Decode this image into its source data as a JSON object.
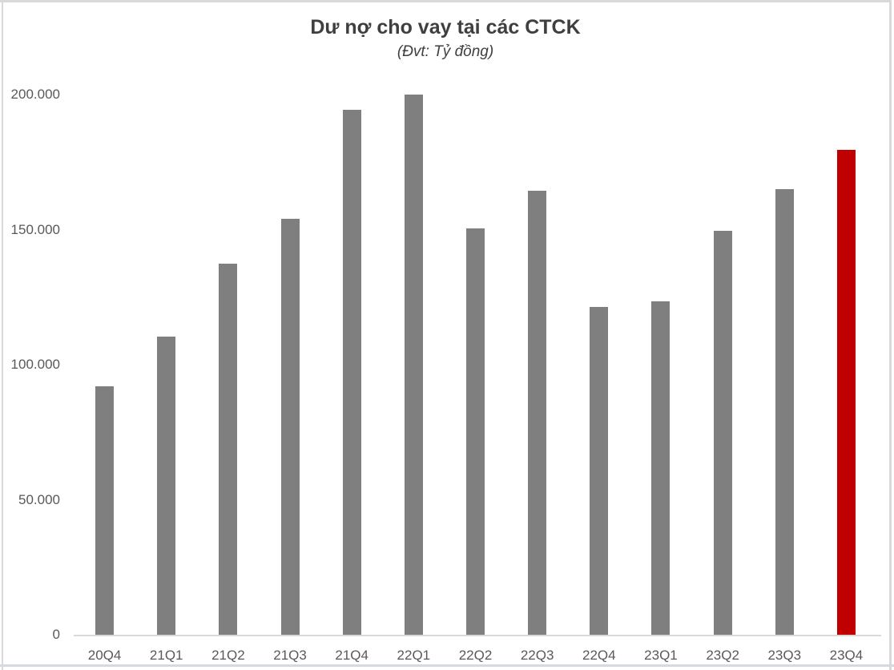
{
  "chart_data": {
    "type": "bar",
    "title": "Dư nợ cho vay tại các CTCK",
    "subtitle": "(Đvt: Tỷ đồng)",
    "unit_label": "Tỷ đồng",
    "categories": [
      "20Q4",
      "21Q1",
      "21Q2",
      "21Q3",
      "21Q4",
      "22Q1",
      "22Q2",
      "22Q3",
      "22Q4",
      "23Q1",
      "23Q2",
      "23Q3",
      "23Q4"
    ],
    "values": [
      92000,
      110500,
      137500,
      154000,
      194500,
      200000,
      150500,
      164500,
      121500,
      123500,
      149500,
      165000,
      179500
    ],
    "highlight_index": 12,
    "bar_color": "#7F7F7F",
    "highlight_color": "#C00000",
    "xlabel": "",
    "ylabel": "",
    "ylim": [
      0,
      200000
    ],
    "ytick_interval": 50000,
    "ytick_labels": [
      "0",
      "50.000",
      "100.000",
      "150.000",
      "200.000"
    ],
    "grid": false,
    "legend": false,
    "axis_text_color": "#595959",
    "title_color": "#3F3F3F"
  }
}
